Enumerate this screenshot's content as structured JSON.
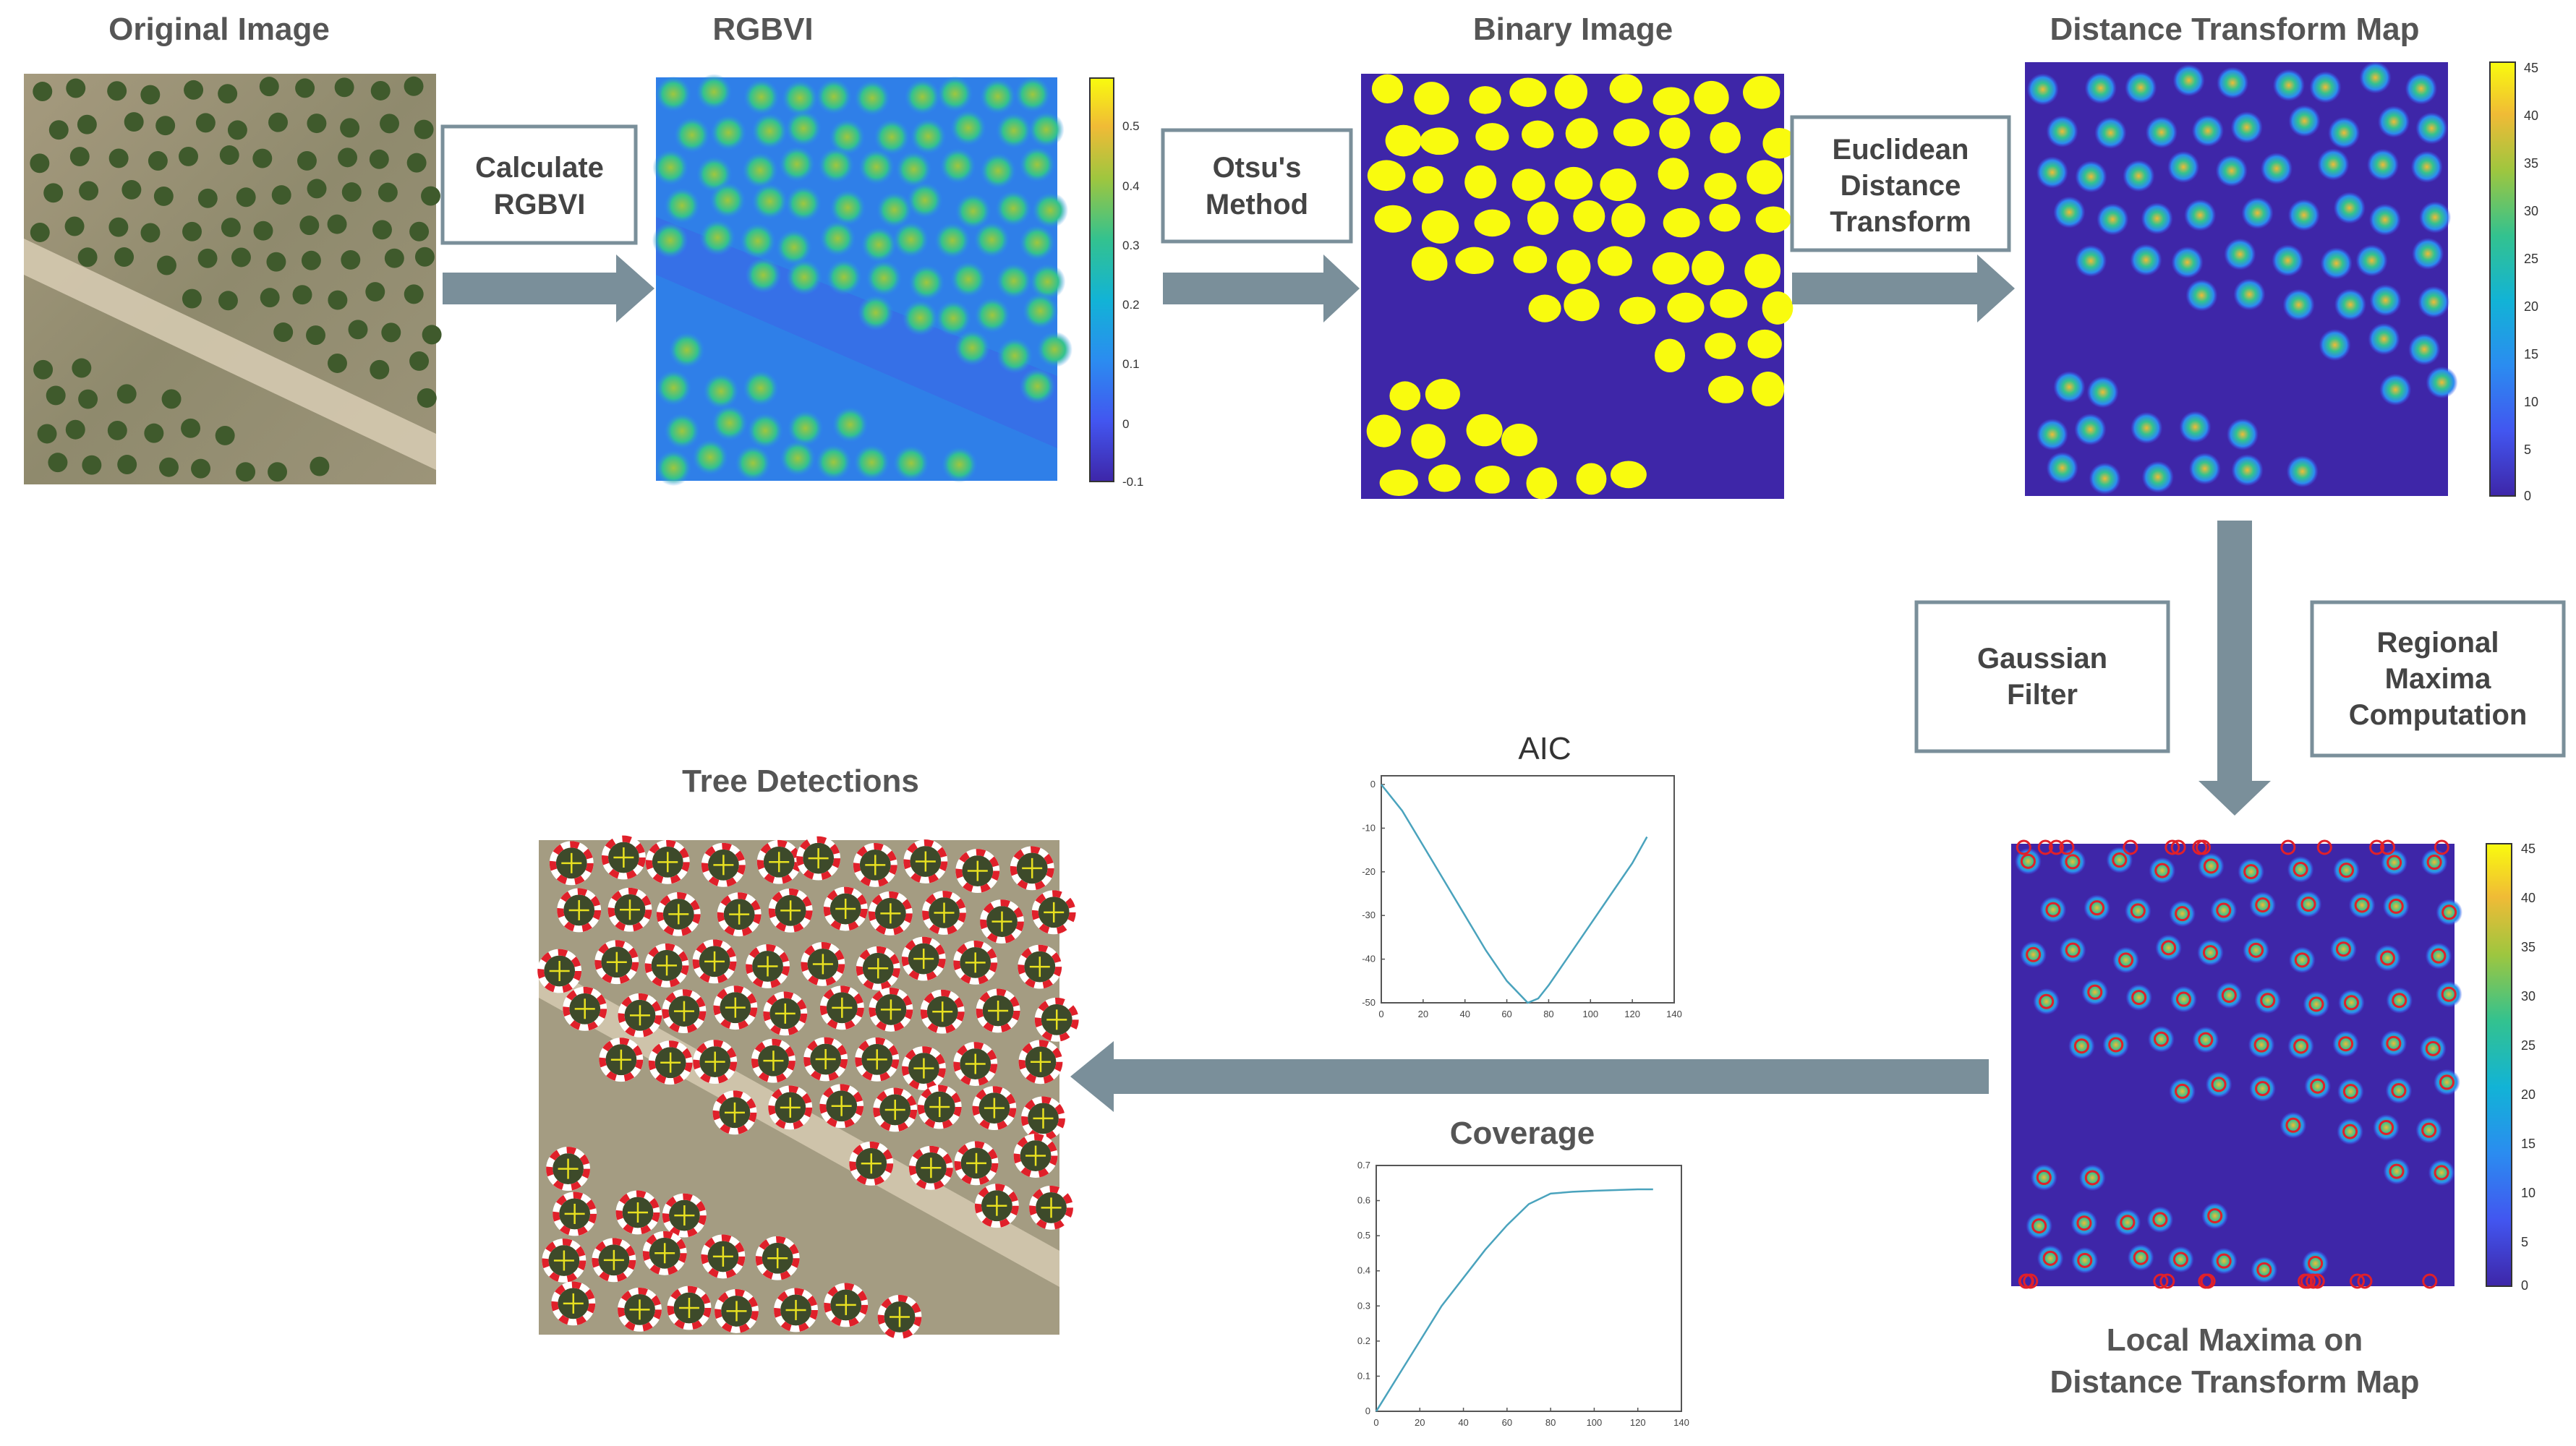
{
  "panels": {
    "original": {
      "title": "Original Image"
    },
    "rgbvi": {
      "title": "RGBVI",
      "colorbar_ticks": [
        "0.5",
        "0.4",
        "0.3",
        "0.2",
        "0.1",
        "0",
        "-0.1"
      ]
    },
    "binary": {
      "title": "Binary Image"
    },
    "distance": {
      "title": "Distance Transform Map",
      "colorbar_ticks": [
        "45",
        "40",
        "35",
        "30",
        "25",
        "20",
        "15",
        "10",
        "5",
        "0"
      ]
    },
    "local_maxima": {
      "title_line1": "Local Maxima on",
      "title_line2": "Distance Transform Map",
      "colorbar_ticks": [
        "45",
        "40",
        "35",
        "30",
        "25",
        "20",
        "15",
        "10",
        "5",
        "0"
      ]
    },
    "detections": {
      "title": "Tree Detections"
    }
  },
  "steps": {
    "rgbvi": {
      "line1": "Calculate",
      "line2": "RGBVI"
    },
    "otsu": {
      "line1": "Otsu's",
      "line2": "Method"
    },
    "edt": {
      "line1": "Euclidean",
      "line2": "Distance",
      "line3": "Transform"
    },
    "gauss": {
      "line1": "Gaussian",
      "line2": "Filter"
    },
    "maxima": {
      "line1": "Regional",
      "line2": "Maxima",
      "line3": "Computation"
    }
  },
  "colors": {
    "arrow": "#7a8f9a",
    "box_border": "#7a8f9a",
    "title_text": "#555555",
    "aic_line": "#4aa3bd"
  },
  "chart_data": [
    {
      "type": "line",
      "title": "AIC",
      "x": [
        0,
        10,
        20,
        30,
        40,
        50,
        60,
        70,
        75,
        80,
        90,
        100,
        110,
        120,
        127
      ],
      "y": [
        0,
        -6,
        -14,
        -22,
        -30,
        -38,
        -45,
        -50,
        -49,
        -46,
        -39,
        -32,
        -25,
        -18,
        -12
      ],
      "xlim": [
        0,
        140
      ],
      "ylim": [
        -50,
        2
      ],
      "xticks": [
        "0",
        "20",
        "40",
        "60",
        "80",
        "100",
        "120",
        "140"
      ],
      "yticks": [
        "0",
        "-10",
        "-20",
        "-30",
        "-40",
        "-50"
      ]
    },
    {
      "type": "line",
      "title": "Coverage",
      "x": [
        0,
        10,
        20,
        30,
        40,
        50,
        60,
        70,
        80,
        90,
        100,
        110,
        120,
        127
      ],
      "y": [
        0,
        0.1,
        0.2,
        0.3,
        0.38,
        0.46,
        0.53,
        0.59,
        0.62,
        0.625,
        0.628,
        0.63,
        0.632,
        0.632
      ],
      "xlim": [
        0,
        140
      ],
      "ylim": [
        0,
        0.7
      ],
      "xticks": [
        "0",
        "20",
        "40",
        "60",
        "80",
        "100",
        "120",
        "140"
      ],
      "yticks": [
        "0.7",
        "0.6",
        "0.5",
        "0.4",
        "0.3",
        "0.2",
        "0.1",
        "0"
      ]
    }
  ]
}
